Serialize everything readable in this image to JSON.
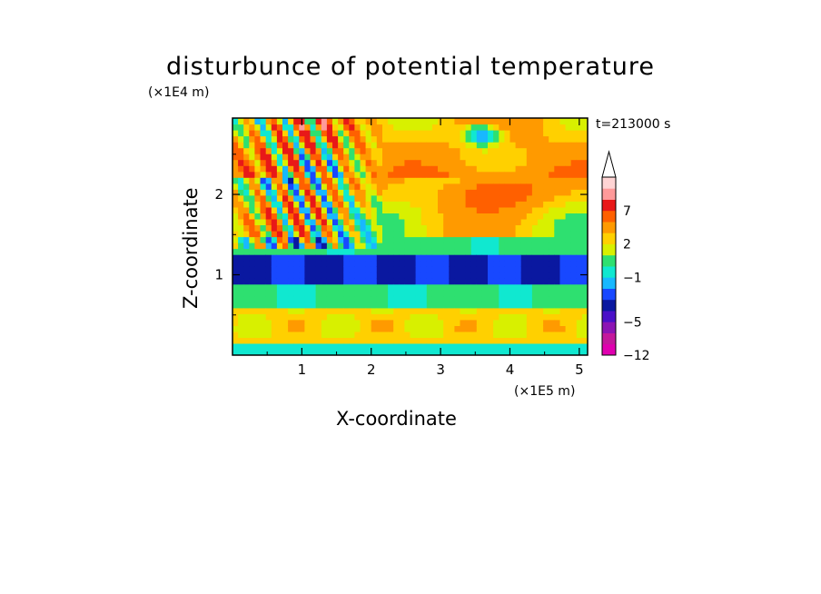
{
  "chart_data": {
    "type": "heatmap",
    "title": "disturbunce of potential temperature",
    "xlabel": "X-coordinate",
    "ylabel": "Z-coordinate",
    "x_unit": "(×1E5 m)",
    "y_unit": "(×1E4 m)",
    "annotation": "t=213000 s",
    "xlim": [
      0,
      5.12
    ],
    "ylim": [
      0,
      2.95
    ],
    "x_ticks": [
      "1",
      "2",
      "3",
      "4",
      "5"
    ],
    "y_ticks": [
      "1",
      "2"
    ],
    "x_tick_values": [
      1,
      2,
      3,
      4,
      5
    ],
    "y_tick_values": [
      1,
      2
    ],
    "colorbar": {
      "levels": [
        "-12",
        "-5",
        "-1",
        "2",
        "7"
      ],
      "level_values": [
        -12,
        -5,
        -1,
        2,
        7
      ],
      "colors": [
        "#e000b0",
        "#c4189c",
        "#8c14b4",
        "#4a10c8",
        "#0a18a0",
        "#1848ff",
        "#18b8ff",
        "#10e8d0",
        "#2ee070",
        "#d8f000",
        "#ffd000",
        "#ff9a00",
        "#ff6000",
        "#e81818",
        "#ff9a9a",
        "#ffd4d4"
      ],
      "extend": "max"
    },
    "bands": [
      {
        "z": [
          0.0,
          0.13
        ],
        "value": "-1"
      },
      {
        "z": [
          0.13,
          0.6
        ],
        "value": "2"
      },
      {
        "z": [
          0.6,
          0.85
        ],
        "value": "-1"
      },
      {
        "z": [
          0.85,
          1.25
        ],
        "value": "-5"
      },
      {
        "z": [
          1.25,
          1.5
        ],
        "value": "0"
      },
      {
        "z": [
          1.5,
          2.2
        ],
        "value": "2"
      },
      {
        "z": [
          2.2,
          2.95
        ],
        "value": "3"
      }
    ]
  }
}
